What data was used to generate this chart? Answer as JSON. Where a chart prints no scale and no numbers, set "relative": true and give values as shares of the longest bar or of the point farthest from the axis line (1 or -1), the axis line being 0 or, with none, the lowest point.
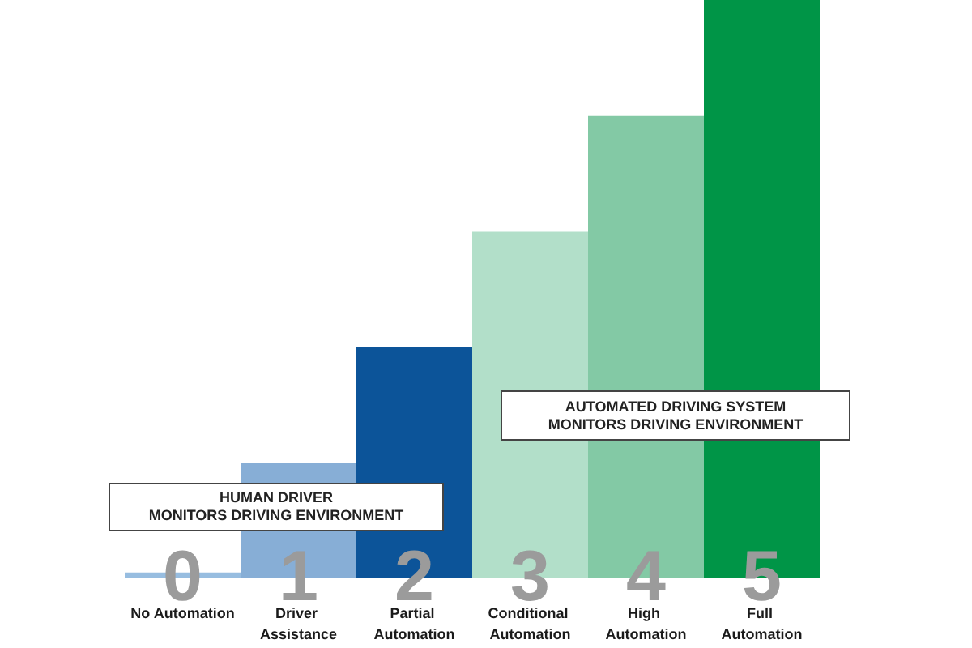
{
  "chart_data": {
    "type": "bar",
    "categories": [
      "No Automation",
      "Driver Assistance",
      "Partial Automation",
      "Conditional Automation",
      "High Automation",
      "Full Automation"
    ],
    "values": [
      0.01,
      0.2,
      0.4,
      0.6,
      0.8,
      1
    ],
    "relative": true,
    "colors": [
      "#97bde0",
      "#87aed6",
      "#0c5499",
      "#b2dfc9",
      "#83c9a5",
      "#009547"
    ],
    "annotations": [
      {
        "text": "0",
        "x": "No Automation",
        "y": 0
      },
      {
        "text": "1",
        "x": "Driver Assistance",
        "y": 0
      },
      {
        "text": "2",
        "x": "Partial Automation",
        "y": 0
      },
      {
        "text": "3",
        "x": "Conditional Automation",
        "y": 0
      },
      {
        "text": "4",
        "x": "High Automation",
        "y": 0
      },
      {
        "text": "5",
        "x": "Full Automation",
        "y": 0
      },
      "HUMAN DRIVER\nMONITORS DRIVING ENVIRONMENT",
      "AUTOMATED DRIVING SYSTEM\nMONITORS DRIVING ENVIRONMENT"
    ]
  }
}
